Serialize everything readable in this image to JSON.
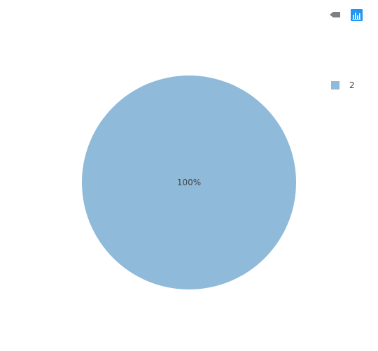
{
  "toolbar": {
    "back_icon": "back-arrow-icon",
    "chart_icon": "bar-chart-icon",
    "accent": "#2196f3",
    "icon_gray": "#808080"
  },
  "chart_data": {
    "type": "pie",
    "categories": [
      "2"
    ],
    "values": [
      100
    ],
    "data_labels": [
      "100%"
    ],
    "colors": [
      "#8fbad9"
    ],
    "legend": {
      "placement": "top-right",
      "entries": [
        "2"
      ]
    },
    "title": ""
  }
}
